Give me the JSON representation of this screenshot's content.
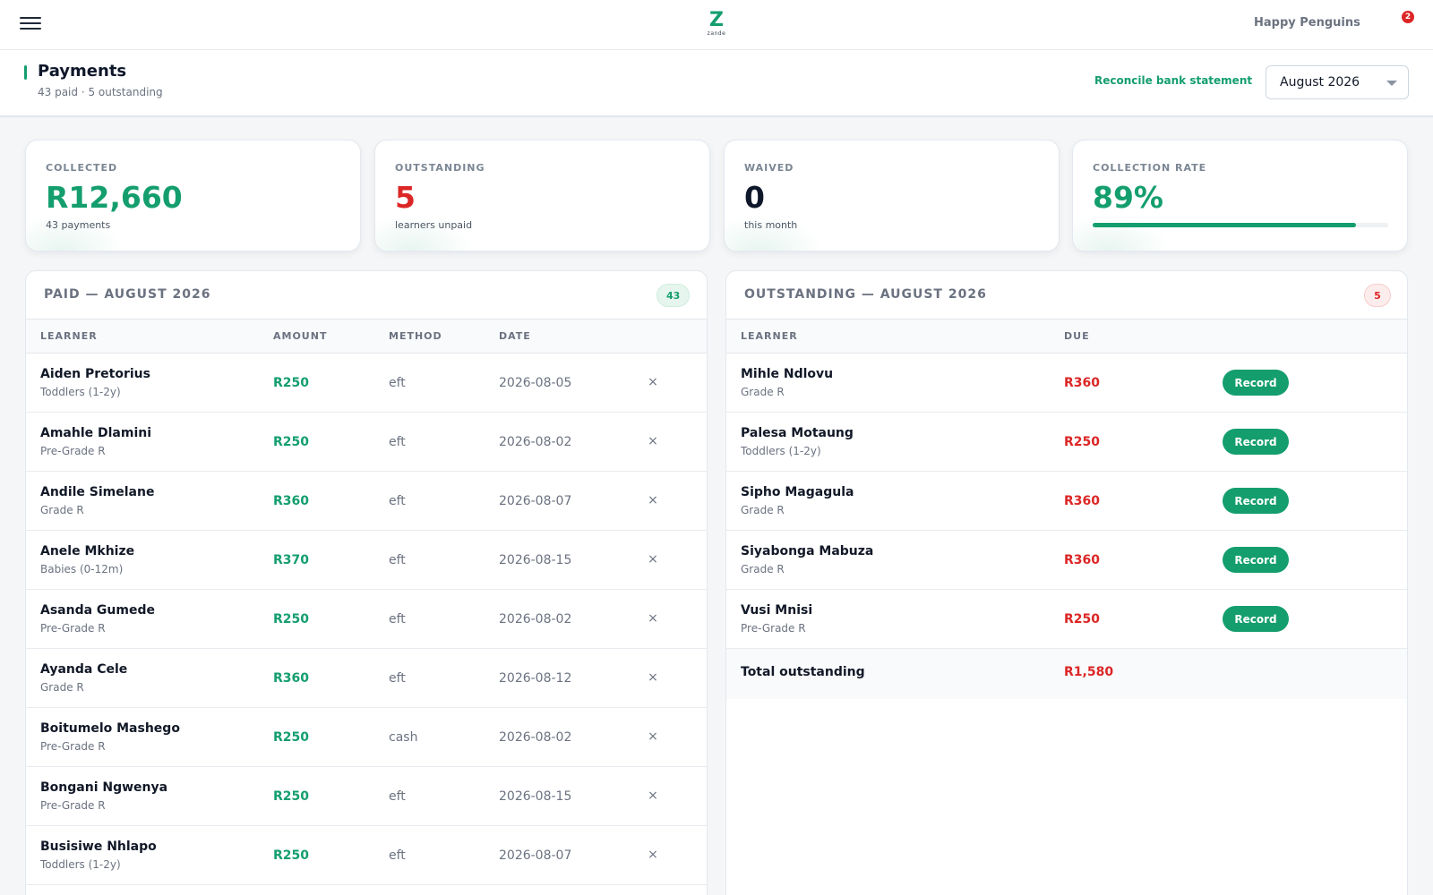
{
  "topbar": {
    "menu_icon": "hamburger-menu-icon",
    "logo_mark": "Z",
    "logo_word": "zande",
    "school_name": "Happy Penguins",
    "notification_count": "2"
  },
  "header": {
    "title": "Payments",
    "subtitle": "43 paid · 5 outstanding",
    "reconcile_label": "Reconcile bank statement",
    "month_selected": "August 2026"
  },
  "stats": {
    "collected": {
      "label": "COLLECTED",
      "value": "R12,660",
      "sub": "43 payments"
    },
    "outstanding": {
      "label": "OUTSTANDING",
      "value": "5",
      "sub": "learners unpaid"
    },
    "waived": {
      "label": "WAIVED",
      "value": "0",
      "sub": "this month"
    },
    "rate": {
      "label": "COLLECTION RATE",
      "value": "89%",
      "fraction": 0.89
    }
  },
  "paid": {
    "title": "PAID — AUGUST 2026",
    "count": "43",
    "columns": {
      "learner": "LEARNER",
      "amount": "AMOUNT",
      "method": "METHOD",
      "date": "DATE"
    },
    "remove_symbol": "×",
    "rows": [
      {
        "name": "Aiden Pretorius",
        "grade": "Toddlers (1-2y)",
        "amount": "R250",
        "method": "eft",
        "date": "2026-08-05"
      },
      {
        "name": "Amahle Dlamini",
        "grade": "Pre-Grade R",
        "amount": "R250",
        "method": "eft",
        "date": "2026-08-02"
      },
      {
        "name": "Andile Simelane",
        "grade": "Grade R",
        "amount": "R360",
        "method": "eft",
        "date": "2026-08-07"
      },
      {
        "name": "Anele Mkhize",
        "grade": "Babies (0-12m)",
        "amount": "R370",
        "method": "eft",
        "date": "2026-08-15"
      },
      {
        "name": "Asanda Gumede",
        "grade": "Pre-Grade R",
        "amount": "R250",
        "method": "eft",
        "date": "2026-08-02"
      },
      {
        "name": "Ayanda Cele",
        "grade": "Grade R",
        "amount": "R360",
        "method": "eft",
        "date": "2026-08-12"
      },
      {
        "name": "Boitumelo Mashego",
        "grade": "Pre-Grade R",
        "amount": "R250",
        "method": "cash",
        "date": "2026-08-02"
      },
      {
        "name": "Bongani Ngwenya",
        "grade": "Pre-Grade R",
        "amount": "R250",
        "method": "eft",
        "date": "2026-08-15"
      },
      {
        "name": "Busisiwe Nhlapo",
        "grade": "Toddlers (1-2y)",
        "amount": "R250",
        "method": "eft",
        "date": "2026-08-07"
      }
    ]
  },
  "outstanding": {
    "title": "OUTSTANDING — AUGUST 2026",
    "count": "5",
    "columns": {
      "learner": "LEARNER",
      "due": "DUE"
    },
    "record_label": "Record",
    "rows": [
      {
        "name": "Mihle Ndlovu",
        "grade": "Grade R",
        "due": "R360"
      },
      {
        "name": "Palesa Motaung",
        "grade": "Toddlers (1-2y)",
        "due": "R250"
      },
      {
        "name": "Sipho Magagula",
        "grade": "Grade R",
        "due": "R360"
      },
      {
        "name": "Siyabonga Mabuza",
        "grade": "Grade R",
        "due": "R360"
      },
      {
        "name": "Vusi Mnisi",
        "grade": "Pre-Grade R",
        "due": "R250"
      }
    ],
    "total_label": "Total outstanding",
    "total_value": "R1,580"
  },
  "colors": {
    "accent": "#149e6e",
    "danger": "#dc2626"
  }
}
